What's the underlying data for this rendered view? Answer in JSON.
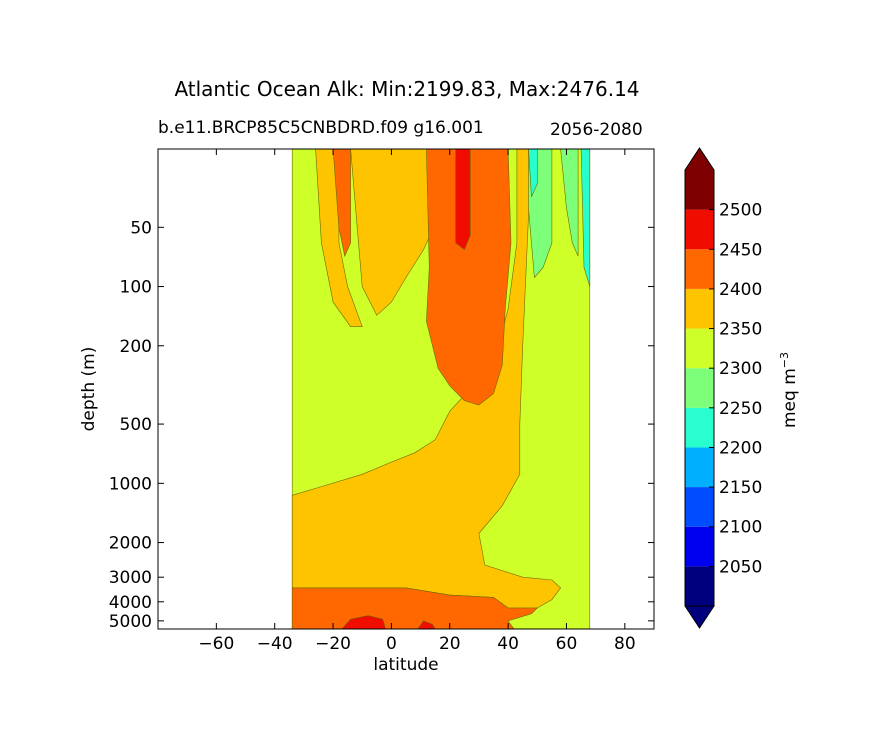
{
  "chart_data": {
    "type": "contourf",
    "title": "Atlantic Ocean Alk: Min:2199.83, Max:2476.14",
    "subtitle": "b.e11.BRCP85C5CNBDRD.f09 g16.001",
    "period": "2056-2080",
    "xlabel": "latitude",
    "ylabel": "depth (m)",
    "xlim": [
      -80,
      90
    ],
    "ylim": [
      20,
      5500
    ],
    "yscale": "log",
    "y_inverted": true,
    "xticks": [
      -60,
      -40,
      -20,
      0,
      20,
      40,
      60,
      80
    ],
    "xtick_labels": [
      "−60",
      "−40",
      "−20",
      "0",
      "20",
      "40",
      "60",
      "80"
    ],
    "yticks": [
      50,
      100,
      200,
      500,
      1000,
      2000,
      3000,
      4000,
      5000
    ],
    "ytick_labels": [
      "50",
      "100",
      "200",
      "500",
      "1000",
      "2000",
      "3000",
      "4000",
      "5000"
    ],
    "colorbar": {
      "label": "meq m",
      "label_sup": "−3",
      "extend": "both",
      "levels": [
        2000,
        2050,
        2100,
        2150,
        2200,
        2250,
        2300,
        2350,
        2400,
        2450,
        2500,
        2550
      ],
      "tick_labels": [
        "2050",
        "2100",
        "2150",
        "2200",
        "2250",
        "2300",
        "2350",
        "2400",
        "2450",
        "2500"
      ],
      "colors": [
        "#00007f",
        "#0000f1",
        "#004cff",
        "#00b0ff",
        "#29ffce",
        "#7dff7a",
        "#ceff29",
        "#ffc400",
        "#ff6800",
        "#f10c00",
        "#7f0000"
      ],
      "under_color": "#00007f",
      "over_color": "#7f0000"
    },
    "regions": [
      {
        "band": "2300-2350",
        "color": "#ceff29",
        "polygon": [
          [
            -34,
            20
          ],
          [
            68,
            20
          ],
          [
            68,
            5500
          ],
          [
            -34,
            5500
          ]
        ]
      },
      {
        "band": "2350-2400",
        "color": "#ffc400",
        "polygon": [
          [
            -34,
            1150
          ],
          [
            -25,
            1050
          ],
          [
            -10,
            900
          ],
          [
            0,
            780
          ],
          [
            8,
            700
          ],
          [
            15,
            600
          ],
          [
            20,
            430
          ],
          [
            28,
            320
          ],
          [
            35,
            250
          ],
          [
            40,
            130
          ],
          [
            43,
            60
          ],
          [
            43,
            20
          ],
          [
            48,
            20
          ],
          [
            45,
            200
          ],
          [
            44,
            500
          ],
          [
            44,
            900
          ],
          [
            38,
            1300
          ],
          [
            30,
            1800
          ],
          [
            32,
            2600
          ],
          [
            45,
            3000
          ],
          [
            55,
            3100
          ],
          [
            58,
            3400
          ],
          [
            55,
            3900
          ],
          [
            50,
            4300
          ],
          [
            40,
            4300
          ],
          [
            35,
            3800
          ],
          [
            20,
            3700
          ],
          [
            5,
            3400
          ],
          [
            -34,
            3400
          ]
        ]
      },
      {
        "band": "2350-2400",
        "color": "#ffc400",
        "polygon": [
          [
            -14,
            20
          ],
          [
            -10,
            100
          ],
          [
            -5,
            140
          ],
          [
            0,
            120
          ],
          [
            5,
            90
          ],
          [
            11,
            65
          ],
          [
            16,
            45
          ],
          [
            16,
            20
          ]
        ]
      },
      {
        "band": "2350-2400",
        "color": "#ffc400",
        "polygon": [
          [
            -26,
            20
          ],
          [
            -24,
            60
          ],
          [
            -20,
            120
          ],
          [
            -14,
            160
          ],
          [
            -10,
            160
          ],
          [
            -15,
            100
          ],
          [
            -18,
            60
          ],
          [
            -18,
            20
          ]
        ]
      },
      {
        "band": "2400-2450",
        "color": "#ff6800",
        "polygon": [
          [
            12,
            20
          ],
          [
            13,
            80
          ],
          [
            12,
            150
          ],
          [
            16,
            260
          ],
          [
            20,
            320
          ],
          [
            25,
            380
          ],
          [
            30,
            400
          ],
          [
            35,
            350
          ],
          [
            38,
            250
          ],
          [
            39,
            130
          ],
          [
            41,
            60
          ],
          [
            40,
            20
          ]
        ]
      },
      {
        "band": "2400-2450",
        "color": "#ff6800",
        "polygon": [
          [
            -20,
            20
          ],
          [
            -18,
            50
          ],
          [
            -16,
            70
          ],
          [
            -14,
            60
          ],
          [
            -14,
            20
          ]
        ]
      },
      {
        "band": "2400-2450",
        "color": "#ff6800",
        "polygon": [
          [
            -34,
            3400
          ],
          [
            5,
            3400
          ],
          [
            20,
            3700
          ],
          [
            35,
            3800
          ],
          [
            40,
            4300
          ],
          [
            50,
            4300
          ],
          [
            48,
            4600
          ],
          [
            40,
            5000
          ],
          [
            42,
            5500
          ],
          [
            -34,
            5500
          ]
        ]
      },
      {
        "band": "2450-2500",
        "color": "#f10c00",
        "polygon": [
          [
            22,
            20
          ],
          [
            22,
            60
          ],
          [
            25,
            65
          ],
          [
            27,
            55
          ],
          [
            27,
            20
          ]
        ]
      },
      {
        "band": "2450-2500",
        "color": "#f10c00",
        "polygon": [
          [
            -17,
            5500
          ],
          [
            -14,
            4900
          ],
          [
            -8,
            4700
          ],
          [
            -3,
            4900
          ],
          [
            -2,
            5500
          ]
        ]
      },
      {
        "band": "2450-2500",
        "color": "#f10c00",
        "polygon": [
          [
            9,
            5500
          ],
          [
            11,
            5000
          ],
          [
            14,
            5200
          ],
          [
            15,
            5500
          ]
        ]
      },
      {
        "band": "2250-2300",
        "color": "#7dff7a",
        "polygon": [
          [
            47,
            20
          ],
          [
            47,
            40
          ],
          [
            49,
            90
          ],
          [
            52,
            80
          ],
          [
            55,
            60
          ],
          [
            55,
            20
          ]
        ]
      },
      {
        "band": "2250-2300",
        "color": "#7dff7a",
        "polygon": [
          [
            58,
            20
          ],
          [
            60,
            40
          ],
          [
            62,
            60
          ],
          [
            64,
            70
          ],
          [
            64,
            20
          ]
        ]
      },
      {
        "band": "2200-2250",
        "color": "#29ffce",
        "polygon": [
          [
            47,
            20
          ],
          [
            48,
            35
          ],
          [
            50,
            30
          ],
          [
            50,
            20
          ]
        ]
      },
      {
        "band": "2200-2250",
        "color": "#29ffce",
        "polygon": [
          [
            65,
            20
          ],
          [
            66,
            80
          ],
          [
            68,
            100
          ],
          [
            68,
            20
          ]
        ]
      }
    ]
  }
}
